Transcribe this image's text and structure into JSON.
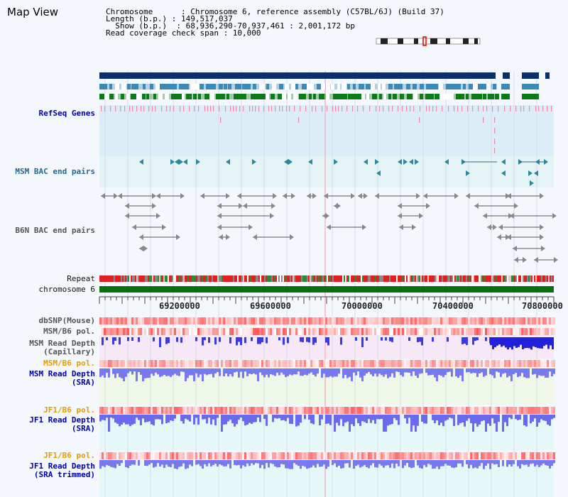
{
  "app": {
    "title": "Map View"
  },
  "info": {
    "line1": "Chromosome      : Chromosome 6, reference assembly (C57BL/6J) (Build 37)",
    "line2": "Length (b.p.) : 149,517,037",
    "line3": "  Show (b.p.)  : 68,936,290-70,937,461 : 2,001,172 bp",
    "line4": "Read coverage check span : 10,000"
  },
  "tracks": {
    "refseq": "RefSeq Genes",
    "msm_bac": "MSM BAC end pairs",
    "b6n_bac": "B6N BAC end pairs",
    "repeat": "Repeat",
    "chromosome": "chromosome 6",
    "dbsnp": "dbSNP(Mouse)",
    "msm_b6_pol": "MSM/B6 pol.",
    "msm_depth_cap_1": "MSM Read Depth",
    "msm_depth_cap_2": "(Capillary)",
    "msm_b6_pol2": "MSM/B6 pol.",
    "msm_depth_sra_1": "MSM Read Depth",
    "msm_depth_sra_2": "(SRA)",
    "jf1_pol": "JF1/B6 pol.",
    "jf1_depth_1": "JF1 Read Depth",
    "jf1_depth_2": "(SRA)",
    "jf1_pol2": "JF1/B6 pol.",
    "jf1_trim_1": "JF1 Read Depth",
    "jf1_trim_2": "(SRA trimmed)"
  },
  "axis": {
    "ticks": [
      "69200000",
      "69600000",
      "70000000",
      "70400000",
      "70800000"
    ]
  },
  "colors": {
    "navy": "#0a2f6b",
    "gene_blue": "#3a8ab8",
    "gene_green": "#0d7a1a",
    "refseq_bg": "#dcedf8",
    "refseq_mark": "#f08aa8",
    "msm_bg": "#e4f3f3",
    "depth_blue": "#5555ee",
    "pol_red": "#e84a4a",
    "chrom_green": "#0b6f12"
  }
}
